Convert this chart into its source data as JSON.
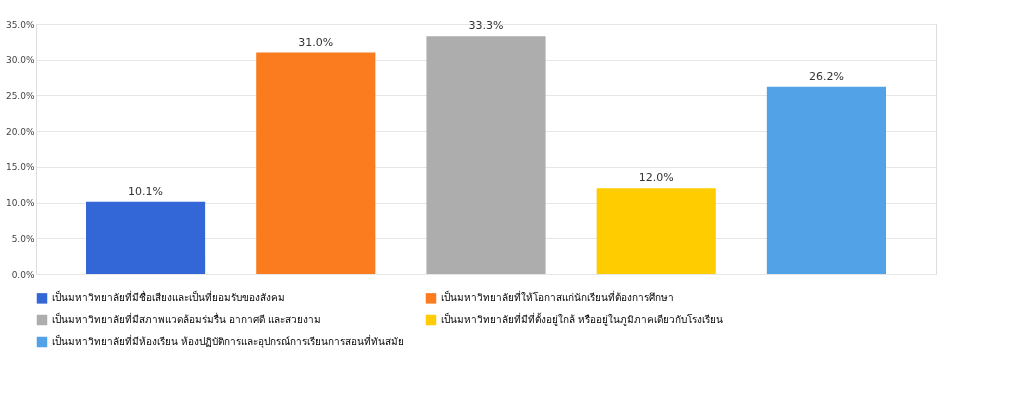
{
  "chart_data": {
    "type": "bar",
    "categories": [
      null
    ],
    "series": [
      {
        "name": "เป็นมหาวิทยาลัยที่มีชื่อเสียงและเป็นที่ยอมรับของสังคม",
        "color": "#3366d6",
        "values": [
          10.1
        ],
        "value_labels": [
          "10.1%"
        ]
      },
      {
        "name": "เป็นมหาวิทยาลัยที่ให้โอกาสแก่นักเรียนที่ต้องการศึกษา",
        "color": "#fa7c1e",
        "values": [
          31.0
        ],
        "value_labels": [
          "31.0%"
        ]
      },
      {
        "name": "เป็นมหาวิทยาลัยที่มีสภาพแวดล้อมร่มรื่น อากาศดี และสวยงาม",
        "color": "#adadad",
        "values": [
          33.3
        ],
        "value_labels": [
          "33.3%"
        ]
      },
      {
        "name": "เป็นมหาวิทยาลัยที่มีที่ตั้งอยู่ใกล้ หรืออยู่ในภูมิภาคเดียวกับโรงเรียน",
        "color": "#ffcc00",
        "values": [
          12.0
        ],
        "value_labels": [
          "12.0%"
        ]
      },
      {
        "name": "เป็นมหาวิทยาลัยที่มีห้องเรียน ห้องปฏิบัติการและอุปกรณ์การเรียนการสอนที่ทันสมัย",
        "color": "#52a2e8",
        "values": [
          26.2
        ],
        "value_labels": [
          "26.2%"
        ]
      }
    ],
    "ylim": [
      0,
      35
    ],
    "yticks": [
      {
        "value": 0,
        "label": "0.0%"
      },
      {
        "value": 5,
        "label": "5.0%"
      },
      {
        "value": 10,
        "label": "10.0%"
      },
      {
        "value": 15,
        "label": "15.0%"
      },
      {
        "value": 20,
        "label": "20.0%"
      },
      {
        "value": 25,
        "label": "25.0%"
      },
      {
        "value": 30,
        "label": "30.0%"
      },
      {
        "value": 35,
        "label": "35.0%"
      }
    ],
    "grid": "y",
    "legend": "bottom",
    "tick_labels": "y"
  }
}
